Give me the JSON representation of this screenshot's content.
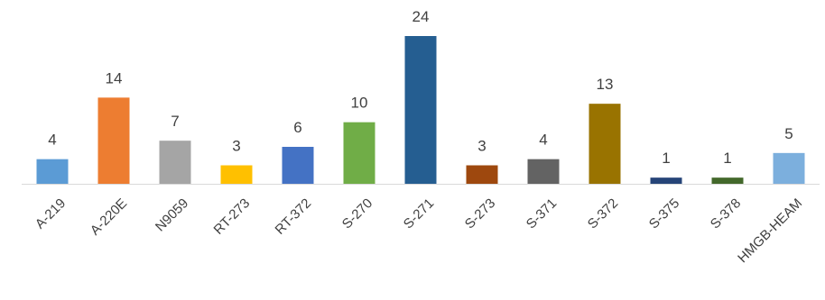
{
  "chart_data": {
    "type": "bar",
    "title": "",
    "xlabel": "",
    "ylabel": "",
    "ylim": [
      0,
      24
    ],
    "grid": false,
    "legend": "none",
    "categories": [
      "A-219",
      "A-220E",
      "N9059",
      "RT-273",
      "RT-372",
      "S-270",
      "S-271",
      "S-273",
      "S-371",
      "S-372",
      "S-375",
      "S-378",
      "HMGB-HEAM"
    ],
    "values": [
      4,
      14,
      7,
      3,
      6,
      10,
      24,
      3,
      4,
      13,
      1,
      1,
      5
    ],
    "colors": [
      "#5B9BD5",
      "#ED7D31",
      "#A5A5A5",
      "#FFC000",
      "#4472C4",
      "#70AD47",
      "#255E91",
      "#9E480E",
      "#636363",
      "#997300",
      "#264478",
      "#43682B",
      "#7CAFDD"
    ],
    "axis_color": "#D9D9D9"
  }
}
